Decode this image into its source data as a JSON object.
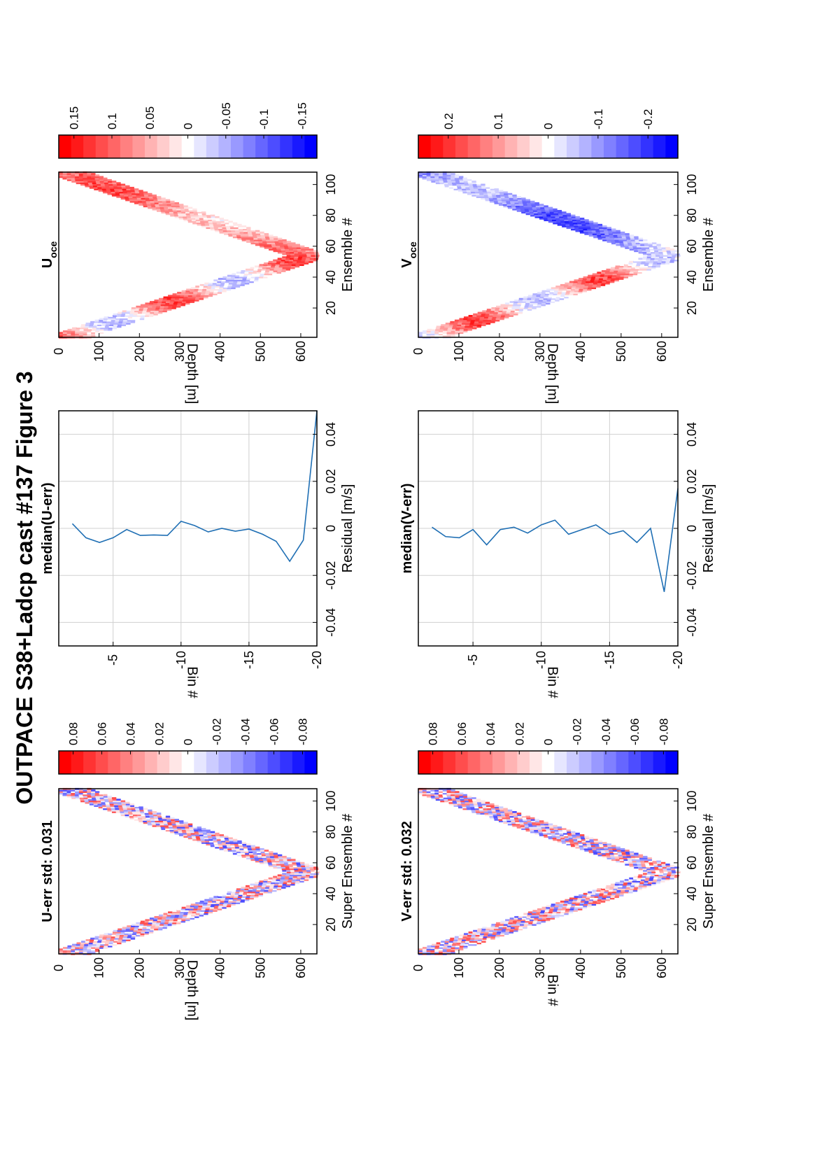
{
  "figure": {
    "title": "OUTPACE S38+Ladcp cast #137  Figure 3"
  },
  "chart_data": [
    {
      "id": "u_err",
      "type": "heatmap",
      "title": "U-err std: 0.031",
      "xlabel": "Super Ensemble #",
      "ylabel": "Depth [m]",
      "x_ticks": [
        20,
        40,
        60,
        80,
        100
      ],
      "y_ticks": [
        0,
        100,
        200,
        300,
        400,
        500,
        600
      ],
      "xlim": [
        1,
        108
      ],
      "ylim": [
        0,
        640
      ],
      "bottom_depth_m": 620,
      "bottom_ensemble": 54,
      "colorbar": {
        "clim": [
          -0.09,
          0.09
        ],
        "tick_labels": [
          "0.08",
          "0.06",
          "0.04",
          "0.02",
          "0",
          "-0.02",
          "-0.04",
          "-0.06",
          "-0.08"
        ],
        "tick_values": [
          0.08,
          0.06,
          0.04,
          0.02,
          0,
          -0.02,
          -0.04,
          -0.06,
          -0.08
        ]
      }
    },
    {
      "id": "median_u_err",
      "type": "line",
      "title": "median(U-err)",
      "xlabel": "Residual [m/s]",
      "ylabel": "Bin #",
      "x_ticks": [
        -0.04,
        -0.02,
        0,
        0.02,
        0.04
      ],
      "x_tick_labels": [
        "-0.04",
        "-0.02",
        "0",
        "0.02",
        "0.04"
      ],
      "y_ticks": [
        -5,
        -10,
        -15,
        -20
      ],
      "xlim": [
        -0.05,
        0.05
      ],
      "ylim": [
        -20,
        -1
      ],
      "grid": true,
      "series": [
        {
          "x": [
            0.002,
            -0.004,
            -0.006,
            -0.004,
            -0.0005,
            -0.003,
            -0.0028,
            -0.003,
            0.003,
            0.0012,
            -0.0015,
            0.0,
            -0.0012,
            -0.0003,
            -0.0025,
            -0.0055,
            -0.014,
            -0.005,
            0.05
          ],
          "y": [
            -2,
            -3,
            -4,
            -5,
            -6,
            -7,
            -8,
            -9,
            -10,
            -11,
            -12,
            -13,
            -14,
            -15,
            -16,
            -17,
            -18,
            -19,
            -20
          ]
        }
      ]
    },
    {
      "id": "u_oce",
      "type": "heatmap",
      "title": "U",
      "title_subscript": "oce",
      "xlabel": "Ensemble #",
      "ylabel": "Depth [m]",
      "x_ticks": [
        20,
        40,
        60,
        80,
        100
      ],
      "y_ticks": [
        0,
        100,
        200,
        300,
        400,
        500,
        600
      ],
      "xlim": [
        1,
        108
      ],
      "ylim": [
        0,
        640
      ],
      "bottom_depth_m": 620,
      "bottom_ensemble": 54,
      "colorbar": {
        "clim": [
          -0.17,
          0.17
        ],
        "tick_labels": [
          "0.15",
          "0.1",
          "0.05",
          "0",
          "-0.05",
          "-0.1",
          "-0.15"
        ],
        "tick_values": [
          0.15,
          0.1,
          0.05,
          0,
          -0.05,
          -0.1,
          -0.15
        ]
      }
    },
    {
      "id": "v_err",
      "type": "heatmap",
      "title": "V-err std: 0.032",
      "xlabel": "Super Ensemble #",
      "ylabel": "Bin #",
      "x_ticks": [
        20,
        40,
        60,
        80,
        100
      ],
      "y_ticks": [
        0,
        100,
        200,
        300,
        400,
        500,
        600
      ],
      "xlim": [
        1,
        108
      ],
      "ylim": [
        0,
        640
      ],
      "bottom_depth_m": 620,
      "bottom_ensemble": 54,
      "colorbar": {
        "clim": [
          -0.09,
          0.09
        ],
        "tick_labels": [
          "0.08",
          "0.06",
          "0.04",
          "0.02",
          "0",
          "-0.02",
          "-0.04",
          "-0.06",
          "-0.08"
        ],
        "tick_values": [
          0.08,
          0.06,
          0.04,
          0.02,
          0,
          -0.02,
          -0.04,
          -0.06,
          -0.08
        ]
      }
    },
    {
      "id": "median_v_err",
      "type": "line",
      "title": "median(V-err)",
      "xlabel": "Residual [m/s]",
      "ylabel": "Bin #",
      "x_ticks": [
        -0.04,
        -0.02,
        0,
        0.02,
        0.04
      ],
      "x_tick_labels": [
        "-0.04",
        "-0.02",
        "0",
        "0.02",
        "0.04"
      ],
      "y_ticks": [
        -5,
        -10,
        -15,
        -20
      ],
      "xlim": [
        -0.05,
        0.05
      ],
      "ylim": [
        -20,
        -1
      ],
      "grid": true,
      "series": [
        {
          "x": [
            0.0005,
            -0.0035,
            -0.004,
            -0.0005,
            -0.007,
            -0.0005,
            0.0005,
            -0.002,
            0.0015,
            0.0035,
            -0.0025,
            -0.0005,
            0.0015,
            -0.0025,
            -0.001,
            -0.006,
            0.0,
            -0.027,
            0.017
          ],
          "y": [
            -2,
            -3,
            -4,
            -5,
            -6,
            -7,
            -8,
            -9,
            -10,
            -11,
            -12,
            -13,
            -14,
            -15,
            -16,
            -17,
            -18,
            -19,
            -20
          ]
        }
      ]
    },
    {
      "id": "v_oce",
      "type": "heatmap",
      "title": "V",
      "title_subscript": "oce",
      "xlabel": "Ensemble #",
      "ylabel": "Depth [m]",
      "x_ticks": [
        20,
        40,
        60,
        80,
        100
      ],
      "y_ticks": [
        0,
        100,
        200,
        300,
        400,
        500,
        600
      ],
      "xlim": [
        1,
        108
      ],
      "ylim": [
        0,
        640
      ],
      "bottom_depth_m": 620,
      "bottom_ensemble": 54,
      "colorbar": {
        "clim": [
          -0.26,
          0.26
        ],
        "tick_labels": [
          "0.2",
          "0.1",
          "0",
          "-0.1",
          "-0.2"
        ],
        "tick_values": [
          0.2,
          0.1,
          0,
          -0.1,
          -0.2
        ]
      }
    }
  ]
}
